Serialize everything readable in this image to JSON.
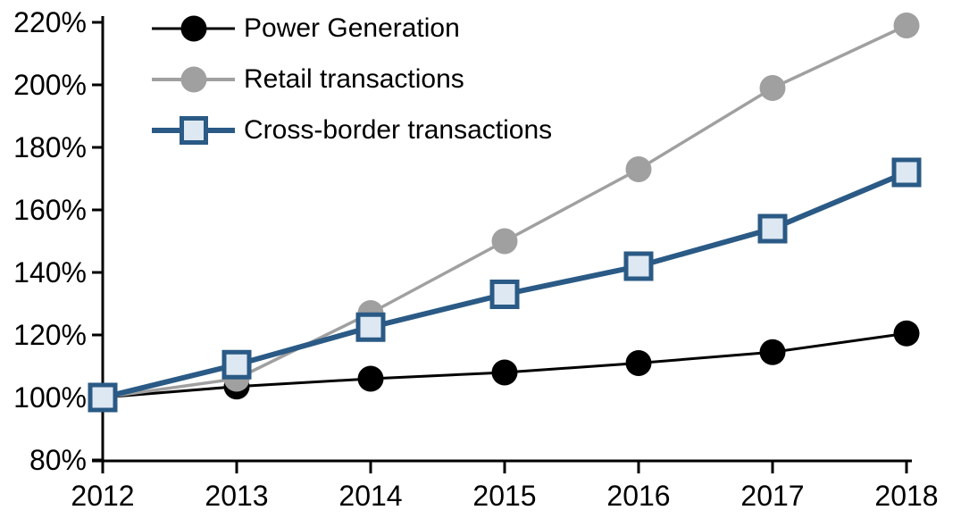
{
  "chart_data": {
    "type": "line",
    "title": "",
    "xlabel": "",
    "ylabel": "",
    "x_labels": [
      "2012",
      "2013",
      "2014",
      "2015",
      "2016",
      "2017",
      "2018"
    ],
    "ylim": [
      80,
      220
    ],
    "ytick_step": 20,
    "ytick_labels": [
      "80%",
      "100%",
      "120%",
      "140%",
      "160%",
      "180%",
      "200%",
      "220%"
    ],
    "grid": false,
    "legend_position": "top-left",
    "axis_color": "#000000",
    "series": [
      {
        "name": "Power Generation",
        "color": "#000000",
        "marker": "circle",
        "marker_fill": "#000000",
        "line_width": 3,
        "values": [
          100,
          103.5,
          106,
          108,
          111,
          114.5,
          120.5
        ]
      },
      {
        "name": "Retail transactions",
        "color": "#a0a0a0",
        "marker": "circle",
        "marker_fill": "#a0a0a0",
        "line_width": 3.5,
        "values": [
          100,
          106,
          127,
          150,
          173,
          199,
          219
        ]
      },
      {
        "name": "Cross-border transactions",
        "color": "#2a5a85",
        "marker": "square",
        "marker_fill": "#dde8f3",
        "line_width": 6,
        "values": [
          100,
          110.5,
          122.5,
          133,
          142,
          154,
          172
        ]
      }
    ]
  }
}
